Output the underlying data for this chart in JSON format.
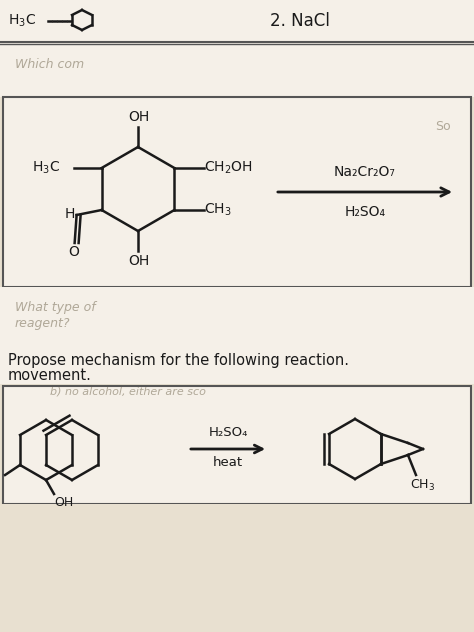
{
  "bg_color": "#e8e0d0",
  "page_bg": "#f5f0e8",
  "box_bg": "#f5f0e8",
  "text_color": "#1a1a1a",
  "faint_color": "#b0a898",
  "top_h3c": "H₃C",
  "top_nacl": "2. NaCl",
  "which_com": "Which com",
  "reagent1": "Na₂Cr₂O₇",
  "reagent2": "H₂SO₄",
  "what_type": "What type of",
  "reagent_q": "reagent?",
  "propose": "Propose mechanism for the following reaction.",
  "movement": "movement.",
  "no_alcohol": "b) no alcohol, either are sco",
  "bot_reagent1": "H₂SO₄",
  "bot_reagent2": "heat",
  "bot_ch3": "CH₃",
  "bot_h3c": "H₃C",
  "bot_oh": "OH"
}
